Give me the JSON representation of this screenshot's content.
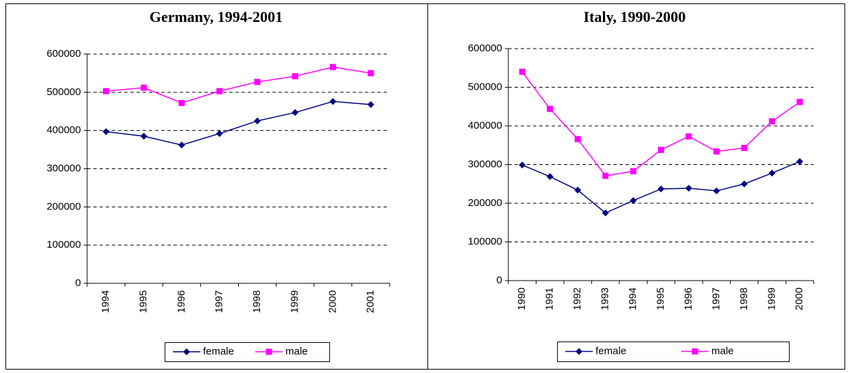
{
  "chart_data": [
    {
      "type": "line",
      "title": "Germany, 1994-2001",
      "categories": [
        "1994",
        "1995",
        "1996",
        "1997",
        "1998",
        "1999",
        "2000",
        "2001"
      ],
      "series": [
        {
          "name": "female",
          "color": "#000080",
          "marker": "diamond",
          "values": [
            397000,
            385000,
            362000,
            392000,
            425000,
            447000,
            476000,
            468000
          ]
        },
        {
          "name": "male",
          "color": "#ff00ff",
          "marker": "square",
          "values": [
            503000,
            512000,
            472000,
            503000,
            527000,
            542000,
            566000,
            550000
          ]
        }
      ],
      "ylim": [
        0,
        600000
      ],
      "yticks": [
        0,
        100000,
        200000,
        300000,
        400000,
        500000,
        600000
      ],
      "grid": true,
      "legend": "bottom"
    },
    {
      "type": "line",
      "title": "Italy, 1990-2000",
      "categories": [
        "1990",
        "1991",
        "1992",
        "1993",
        "1994",
        "1995",
        "1996",
        "1997",
        "1998",
        "1999",
        "2000"
      ],
      "series": [
        {
          "name": "female",
          "color": "#000080",
          "marker": "diamond",
          "values": [
            299000,
            269000,
            234000,
            175000,
            207000,
            237000,
            239000,
            232000,
            250000,
            278000,
            308000
          ]
        },
        {
          "name": "male",
          "color": "#ff00ff",
          "marker": "square",
          "values": [
            540000,
            444000,
            366000,
            271000,
            283000,
            338000,
            373000,
            334000,
            343000,
            412000,
            462000
          ]
        }
      ],
      "ylim": [
        0,
        600000
      ],
      "yticks": [
        0,
        100000,
        200000,
        300000,
        400000,
        500000,
        600000
      ],
      "grid": true,
      "legend": "bottom"
    }
  ]
}
